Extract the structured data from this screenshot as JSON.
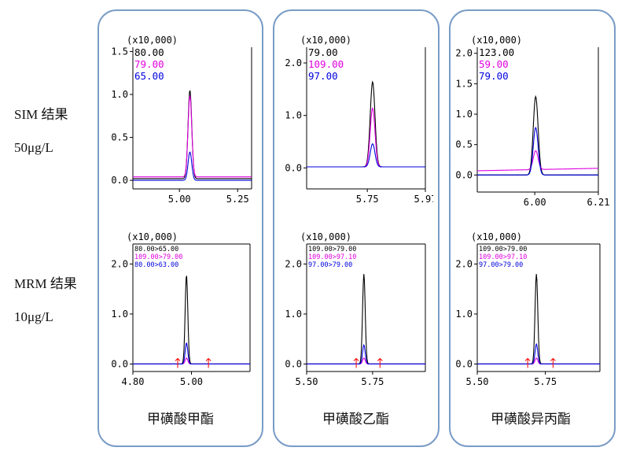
{
  "row_labels": {
    "sim_1": "SIM 结果",
    "sim_2": "50μg/L",
    "mrm_1": "MRM 结果",
    "mrm_2": "10μg/L"
  },
  "compounds": [
    {
      "name": "甲磺酸甲酯"
    },
    {
      "name": "甲磺酸乙酯"
    },
    {
      "name": "甲磺酸异丙酯"
    }
  ],
  "chart_data": [
    {
      "id": "sim-methyl",
      "type": "line",
      "multiplier": "(x10,000)",
      "xlim": [
        4.8,
        5.31
      ],
      "ylim": [
        -0.1,
        1.55
      ],
      "xticks": [
        5.0,
        5.25
      ],
      "xtick_labels": [
        "5.00",
        "5.25"
      ],
      "yticks": [
        0,
        0.5,
        1.0,
        1.5
      ],
      "ytick_labels": [
        "0.0",
        "0.5",
        "1.0",
        "1.5"
      ],
      "legend": [
        {
          "label": "80.00",
          "color": "#000000"
        },
        {
          "label": "79.00",
          "color": "#e000e0"
        },
        {
          "label": "65.00",
          "color": "#0000dd"
        }
      ],
      "series": [
        {
          "name": "80.00",
          "color": "#000000",
          "baseline": 0.02,
          "rt": 5.045,
          "height": 1.03,
          "width": 0.008,
          "slope": 0
        },
        {
          "name": "79.00",
          "color": "#e000e0",
          "baseline": 0.04,
          "rt": 5.045,
          "height": 0.95,
          "width": 0.008,
          "slope": 0
        },
        {
          "name": "65.00",
          "color": "#0000dd",
          "baseline": 0.0,
          "rt": 5.045,
          "height": 0.33,
          "width": 0.008,
          "slope": 0
        }
      ],
      "markers": []
    },
    {
      "id": "sim-ethyl",
      "type": "line",
      "multiplier": "(x10,000)",
      "xlim": [
        5.52,
        5.97
      ],
      "ylim": [
        -0.4,
        2.3
      ],
      "xticks": [
        5.75,
        5.97
      ],
      "xtick_labels": [
        "5.75",
        "5.97"
      ],
      "yticks": [
        0,
        1.0,
        2.0
      ],
      "ytick_labels": [
        "0.0",
        "1.0",
        "2.0"
      ],
      "legend": [
        {
          "label": "79.00",
          "color": "#000000"
        },
        {
          "label": "109.00",
          "color": "#e000e0"
        },
        {
          "label": "97.00",
          "color": "#0000dd"
        }
      ],
      "series": [
        {
          "name": "79.00",
          "color": "#000000",
          "baseline": 0.02,
          "rt": 5.77,
          "height": 1.62,
          "width": 0.009,
          "slope": 0
        },
        {
          "name": "109.00",
          "color": "#e000e0",
          "baseline": 0.02,
          "rt": 5.77,
          "height": 1.12,
          "width": 0.009,
          "slope": 0
        },
        {
          "name": "97.00",
          "color": "#0000dd",
          "baseline": 0.02,
          "rt": 5.77,
          "height": 0.44,
          "width": 0.009,
          "slope": 0
        }
      ],
      "markers": []
    },
    {
      "id": "sim-isopropyl",
      "type": "line",
      "multiplier": "(x10,000)",
      "xlim": [
        5.81,
        6.21
      ],
      "ylim": [
        -0.28,
        2.1
      ],
      "xticks": [
        6.0,
        6.21
      ],
      "xtick_labels": [
        "6.00",
        "6.21"
      ],
      "yticks": [
        0,
        0.5,
        1.0,
        1.5,
        2.0
      ],
      "ytick_labels": [
        "0.0",
        "0.5",
        "1.0",
        "1.5",
        "2.0"
      ],
      "legend": [
        {
          "label": "123.00",
          "color": "#000000"
        },
        {
          "label": "59.00",
          "color": "#e000e0"
        },
        {
          "label": "79.00",
          "color": "#0000dd"
        }
      ],
      "series": [
        {
          "name": "123.00",
          "color": "#000000",
          "baseline": 0.0,
          "rt": 6.003,
          "height": 1.29,
          "width": 0.008,
          "slope": 0
        },
        {
          "name": "59.00",
          "color": "#e000e0",
          "baseline": 0.07,
          "rt": 6.003,
          "height": 0.31,
          "width": 0.008,
          "slope": 0.04
        },
        {
          "name": "79.00",
          "color": "#0000dd",
          "baseline": 0.0,
          "rt": 6.003,
          "height": 0.78,
          "width": 0.008,
          "slope": 0
        }
      ],
      "markers": []
    },
    {
      "id": "mrm-methyl",
      "type": "line",
      "multiplier": "(x10,000)",
      "xlim": [
        4.8,
        5.2
      ],
      "ylim": [
        -0.15,
        2.4
      ],
      "xticks": [
        4.8,
        5.0
      ],
      "xtick_labels": [
        "4.80",
        "5.00"
      ],
      "yticks": [
        0,
        1.0,
        2.0
      ],
      "ytick_labels": [
        "0.0",
        "1.0",
        "2.0"
      ],
      "legend": [
        {
          "label": "80.00>65.00",
          "color": "#000000"
        },
        {
          "label": "109.00>79.00",
          "color": "#e000e0"
        },
        {
          "label": "80.00>63.00",
          "color": "#0000dd"
        }
      ],
      "series": [
        {
          "name": "80.00>65.00",
          "color": "#000000",
          "baseline": 0.0,
          "rt": 4.983,
          "height": 1.78,
          "width": 0.0045,
          "slope": 0
        },
        {
          "name": "109.00>79.00",
          "color": "#e000e0",
          "baseline": 0.0,
          "rt": 4.983,
          "height": 0.12,
          "width": 0.0045,
          "slope": 0
        },
        {
          "name": "80.00>63.00",
          "color": "#0000dd",
          "baseline": 0.0,
          "rt": 4.983,
          "height": 0.42,
          "width": 0.0045,
          "slope": 0
        }
      ],
      "markers": [
        4.953,
        5.058
      ]
    },
    {
      "id": "mrm-ethyl",
      "type": "line",
      "multiplier": "(x10,000)",
      "xlim": [
        5.5,
        5.95
      ],
      "ylim": [
        -0.15,
        2.4
      ],
      "xticks": [
        5.5,
        5.75
      ],
      "xtick_labels": [
        "5.50",
        "5.75"
      ],
      "yticks": [
        0,
        1.0,
        2.0
      ],
      "ytick_labels": [
        "0.0",
        "1.0",
        "2.0"
      ],
      "legend": [
        {
          "label": "109.00>79.00",
          "color": "#000000"
        },
        {
          "label": "109.00>97.10",
          "color": "#e000e0"
        },
        {
          "label": "97.00>79.00",
          "color": "#0000dd"
        }
      ],
      "series": [
        {
          "name": "109.00>79.00",
          "color": "#000000",
          "baseline": 0.0,
          "rt": 5.717,
          "height": 1.8,
          "width": 0.005,
          "slope": 0
        },
        {
          "name": "109.00>97.10",
          "color": "#e000e0",
          "baseline": 0.0,
          "rt": 5.717,
          "height": 0.12,
          "width": 0.005,
          "slope": 0
        },
        {
          "name": "97.00>79.00",
          "color": "#0000dd",
          "baseline": 0.0,
          "rt": 5.717,
          "height": 0.38,
          "width": 0.005,
          "slope": 0
        }
      ],
      "markers": [
        5.688,
        5.778
      ]
    },
    {
      "id": "mrm-isopropyl",
      "type": "line",
      "multiplier": "(x10,000)",
      "xlim": [
        5.5,
        5.95
      ],
      "ylim": [
        -0.15,
        2.4
      ],
      "xticks": [
        5.5,
        5.75
      ],
      "xtick_labels": [
        "5.50",
        "5.75"
      ],
      "yticks": [
        0,
        1.0,
        2.0
      ],
      "ytick_labels": [
        "0.0",
        "1.0",
        "2.0"
      ],
      "legend": [
        {
          "label": "109.00>79.00",
          "color": "#000000"
        },
        {
          "label": "109.00>97.10",
          "color": "#e000e0"
        },
        {
          "label": "97.00>79.00",
          "color": "#0000dd"
        }
      ],
      "series": [
        {
          "name": "109.00>79.00",
          "color": "#000000",
          "baseline": 0.0,
          "rt": 5.717,
          "height": 1.8,
          "width": 0.005,
          "slope": 0
        },
        {
          "name": "109.00>97.10",
          "color": "#e000e0",
          "baseline": 0.0,
          "rt": 5.717,
          "height": 0.12,
          "width": 0.005,
          "slope": 0
        },
        {
          "name": "97.00>79.00",
          "color": "#0000dd",
          "baseline": 0.0,
          "rt": 5.717,
          "height": 0.4,
          "width": 0.005,
          "slope": 0
        }
      ],
      "markers": [
        5.685,
        5.778
      ]
    }
  ]
}
